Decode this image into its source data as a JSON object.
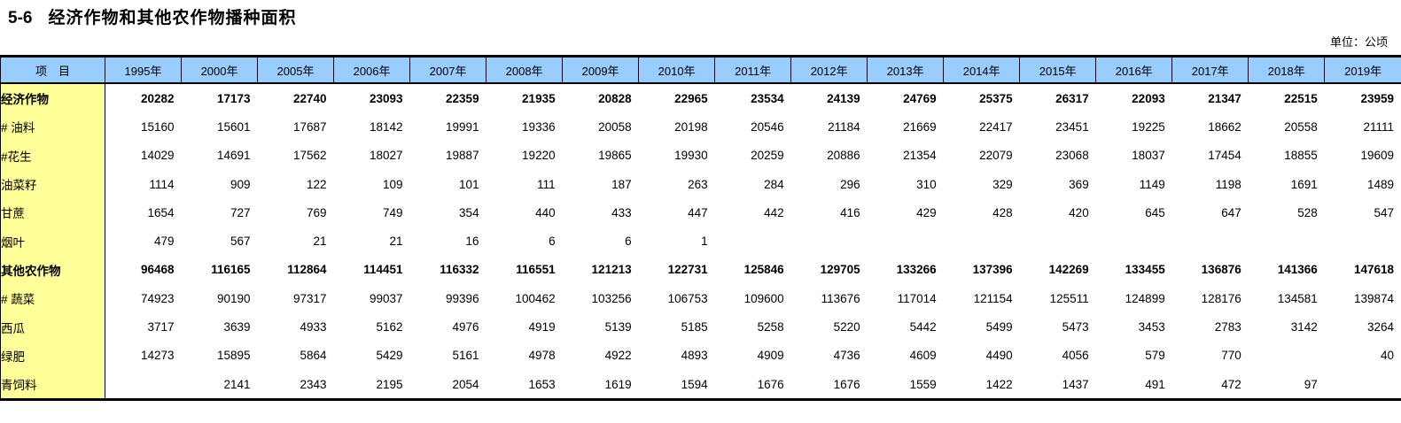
{
  "header": {
    "table_number": "5-6",
    "title": "经济作物和其他农作物播种面积",
    "unit": "单位：公顷"
  },
  "colors": {
    "header_bg": "#99CCFF",
    "label_bg": "#FFFF99",
    "border": "#000000"
  },
  "table": {
    "item_header": "项　目",
    "year_columns": [
      "1995年",
      "2000年",
      "2005年",
      "2006年",
      "2007年",
      "2008年",
      "2009年",
      "2010年",
      "2011年",
      "2012年",
      "2013年",
      "2014年",
      "2015年",
      "2016年",
      "2017年",
      "2018年",
      "2019年"
    ],
    "rows": [
      {
        "label": "经济作物",
        "level": 0,
        "bold": true,
        "values": [
          "20282",
          "17173",
          "22740",
          "23093",
          "22359",
          "21935",
          "20828",
          "22965",
          "23534",
          "24139",
          "24769",
          "25375",
          "26317",
          "22093",
          "21347",
          "22515",
          "23959"
        ]
      },
      {
        "label": "# 油料",
        "level": 1,
        "bold": false,
        "values": [
          "15160",
          "15601",
          "17687",
          "18142",
          "19991",
          "19336",
          "20058",
          "20198",
          "20546",
          "21184",
          "21669",
          "22417",
          "23451",
          "19225",
          "18662",
          "20558",
          "21111"
        ]
      },
      {
        "label": "#花生",
        "level": 5,
        "bold": false,
        "values": [
          "14029",
          "14691",
          "17562",
          "18027",
          "19887",
          "19220",
          "19865",
          "19930",
          "20259",
          "20886",
          "21354",
          "22079",
          "23068",
          "18037",
          "17454",
          "18855",
          "19609"
        ]
      },
      {
        "label": "油菜籽",
        "level": 6,
        "bold": false,
        "values": [
          "1114",
          "909",
          "122",
          "109",
          "101",
          "111",
          "187",
          "263",
          "284",
          "296",
          "310",
          "329",
          "369",
          "1149",
          "1198",
          "1691",
          "1489"
        ]
      },
      {
        "label": "甘蔗",
        "level": 3,
        "bold": false,
        "values": [
          "1654",
          "727",
          "769",
          "749",
          "354",
          "440",
          "433",
          "447",
          "442",
          "416",
          "429",
          "428",
          "420",
          "645",
          "647",
          "528",
          "547"
        ]
      },
      {
        "label": "烟叶",
        "level": 3,
        "bold": false,
        "values": [
          "479",
          "567",
          "21",
          "21",
          "16",
          "6",
          "6",
          "1",
          "",
          "",
          "",
          "",
          "",
          "",
          "",
          "",
          ""
        ]
      },
      {
        "label": "其他农作物",
        "level": 0,
        "bold": true,
        "values": [
          "96468",
          "116165",
          "112864",
          "114451",
          "116332",
          "116551",
          "121213",
          "122731",
          "125846",
          "129705",
          "133266",
          "137396",
          "142269",
          "133455",
          "136876",
          "141366",
          "147618"
        ]
      },
      {
        "label": "# 蔬菜",
        "level": 2,
        "bold": false,
        "values": [
          "74923",
          "90190",
          "97317",
          "99037",
          "99396",
          "100462",
          "103256",
          "106753",
          "109600",
          "113676",
          "117014",
          "121154",
          "125511",
          "124899",
          "128176",
          "134581",
          "139874"
        ]
      },
      {
        "label": "西瓜",
        "level": 4,
        "bold": false,
        "values": [
          "3717",
          "3639",
          "4933",
          "5162",
          "4976",
          "4919",
          "5139",
          "5185",
          "5258",
          "5220",
          "5442",
          "5499",
          "5473",
          "3453",
          "2783",
          "3142",
          "3264"
        ]
      },
      {
        "label": "绿肥",
        "level": 4,
        "bold": false,
        "values": [
          "14273",
          "15895",
          "5864",
          "5429",
          "5161",
          "4978",
          "4922",
          "4893",
          "4909",
          "4736",
          "4609",
          "4490",
          "4056",
          "579",
          "770",
          "",
          "40"
        ]
      },
      {
        "label": "青饲料",
        "level": 4,
        "bold": false,
        "values": [
          "",
          "2141",
          "2343",
          "2195",
          "2054",
          "1653",
          "1619",
          "1594",
          "1676",
          "1676",
          "1559",
          "1422",
          "1437",
          "491",
          "472",
          "97",
          ""
        ]
      }
    ]
  }
}
